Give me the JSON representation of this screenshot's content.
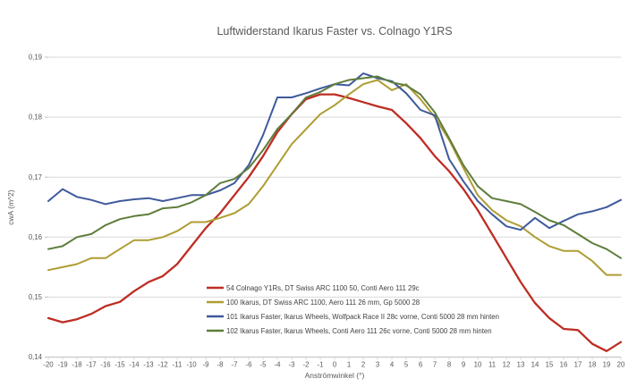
{
  "chart_data": {
    "type": "line",
    "title": "Luftwiderstand Ikarus Faster vs. Colnago Y1RS",
    "xlabel": "Anströmwinkel (°)",
    "ylabel": "cwA (m^2)",
    "x": [
      -20,
      -19,
      -18,
      -17,
      -16,
      -15,
      -14,
      -13,
      -12,
      -11,
      -10,
      -9,
      -8,
      -7,
      -6,
      -5,
      -4,
      -3,
      -2,
      -1,
      0,
      1,
      2,
      3,
      4,
      5,
      6,
      7,
      8,
      9,
      10,
      11,
      12,
      13,
      14,
      15,
      16,
      17,
      18,
      19,
      20
    ],
    "xlim": [
      -20,
      20
    ],
    "ylim": [
      0.14,
      0.19
    ],
    "yticks": [
      {
        "value": 0.14,
        "label": "0,14"
      },
      {
        "value": 0.15,
        "label": "0,15"
      },
      {
        "value": 0.16,
        "label": "0,16"
      },
      {
        "value": 0.17,
        "label": "0,17"
      },
      {
        "value": 0.18,
        "label": "0,18"
      },
      {
        "value": 0.19,
        "label": "0,19"
      }
    ],
    "grid": "horizontal",
    "legend_position": "inside-bottom-left",
    "colors": {
      "grid": "#d9d9d9",
      "axis": "#bfbfbf",
      "text": "#595959"
    },
    "series": [
      {
        "name": "54 Colnago Y1Rs, DT Swiss ARC 1100 50, Conti Aero 111 29c",
        "color": "#be2d23",
        "values": [
          0.1465,
          0.1458,
          0.1463,
          0.1472,
          0.1485,
          0.1492,
          0.151,
          0.1525,
          0.1535,
          0.1555,
          0.1585,
          0.1615,
          0.164,
          0.167,
          0.17,
          0.1735,
          0.1775,
          0.1805,
          0.183,
          0.1838,
          0.1838,
          0.1832,
          0.1825,
          0.1818,
          0.1812,
          0.179,
          0.1765,
          0.1735,
          0.171,
          0.168,
          0.1645,
          0.1605,
          0.1565,
          0.1525,
          0.149,
          0.1465,
          0.1447,
          0.1445,
          0.1422,
          0.141,
          0.1425
        ]
      },
      {
        "name": "100 Ikarus, DT Swiss ARC 1100, Aero 111 26 mm, Gp 5000 28",
        "color": "#af9d33",
        "values": [
          0.1545,
          0.155,
          0.1555,
          0.1565,
          0.1565,
          0.158,
          0.1595,
          0.1595,
          0.16,
          0.161,
          0.1625,
          0.1625,
          0.1632,
          0.164,
          0.1655,
          0.1685,
          0.172,
          0.1755,
          0.178,
          0.1805,
          0.182,
          0.1838,
          0.1855,
          0.1862,
          0.1845,
          0.1855,
          0.183,
          0.18,
          0.1762,
          0.1715,
          0.167,
          0.1645,
          0.1628,
          0.1618,
          0.16,
          0.1585,
          0.1577,
          0.1577,
          0.156,
          0.1537,
          0.1537
        ]
      },
      {
        "name": "101 Ikarus Faster, Ikarus Wheels, Wolfpack Race II 28c vorne, Conti 5000 28 mm hinten",
        "color": "#3e5a9b",
        "values": [
          0.166,
          0.168,
          0.1667,
          0.1662,
          0.1655,
          0.166,
          0.1663,
          0.1665,
          0.166,
          0.1665,
          0.167,
          0.167,
          0.1678,
          0.169,
          0.172,
          0.177,
          0.1833,
          0.1833,
          0.184,
          0.1848,
          0.1855,
          0.1853,
          0.1873,
          0.1865,
          0.186,
          0.184,
          0.1812,
          0.1803,
          0.173,
          0.1693,
          0.166,
          0.1638,
          0.1618,
          0.1612,
          0.1632,
          0.1615,
          0.1627,
          0.1638,
          0.1643,
          0.165,
          0.1662
        ]
      },
      {
        "name": "102 Ikarus Faster, Ikarus Wheels, Conti Aero 111 26c vorne, Conti 5000 28 mm hinten",
        "color": "#5f7d3c",
        "values": [
          0.158,
          0.1585,
          0.16,
          0.1605,
          0.162,
          0.163,
          0.1635,
          0.1638,
          0.1648,
          0.165,
          0.1658,
          0.167,
          0.169,
          0.1697,
          0.1715,
          0.1745,
          0.178,
          0.1805,
          0.1833,
          0.1842,
          0.1855,
          0.1862,
          0.1865,
          0.1868,
          0.1858,
          0.1853,
          0.1838,
          0.1808,
          0.1765,
          0.172,
          0.1685,
          0.1665,
          0.166,
          0.1655,
          0.1642,
          0.1628,
          0.162,
          0.1605,
          0.159,
          0.158,
          0.1565
        ]
      }
    ]
  }
}
